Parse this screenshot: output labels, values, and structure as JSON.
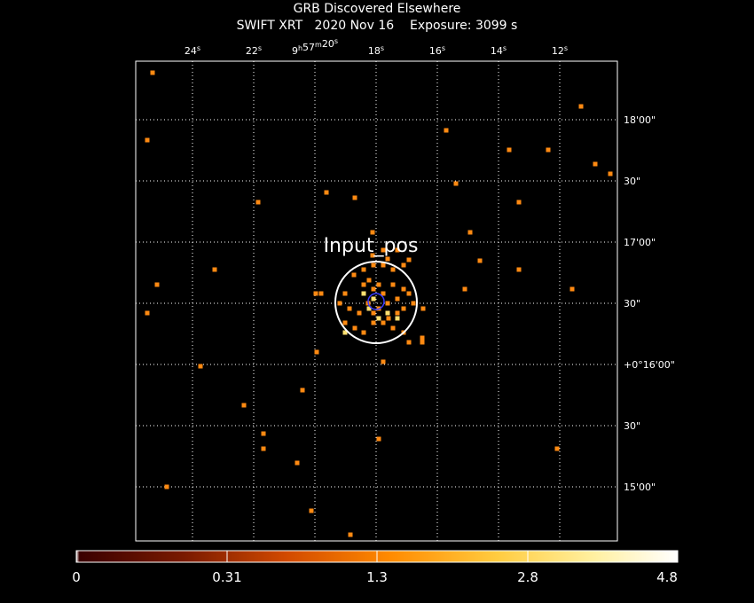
{
  "header": {
    "title": "GRB Discovered Elsewhere",
    "subtitle": "SWIFT XRT   2020 Nov 16    Exposure: 3099 s"
  },
  "ra_ticks": [
    {
      "label": "24",
      "unit": "s"
    },
    {
      "label": "22",
      "unit": "s"
    },
    {
      "label": "9",
      "unit": "h",
      "label2": "57",
      "unit2": "m",
      "label3": "20",
      "unit3": "s"
    },
    {
      "label": "18",
      "unit": "s"
    },
    {
      "label": "16",
      "unit": "s"
    },
    {
      "label": "14",
      "unit": "s"
    },
    {
      "label": "12",
      "unit": "s"
    }
  ],
  "dec_ticks": [
    "18'00\"",
    "30\"",
    "17'00\"",
    "30\"",
    "+0°16'00\"",
    "30\"",
    "15'00\""
  ],
  "annotation": {
    "source_label": "Input_pos"
  },
  "colorbar": {
    "labels": [
      "0",
      "0.31",
      "1.3",
      "2.8",
      "4.8"
    ]
  },
  "colors": {
    "background": "#000000",
    "grid": "#ffffff",
    "photon": "#ff8a12",
    "photon_bright": "#ffe070",
    "circle": "#ffffff",
    "error_circle": "#3a3aff"
  }
}
